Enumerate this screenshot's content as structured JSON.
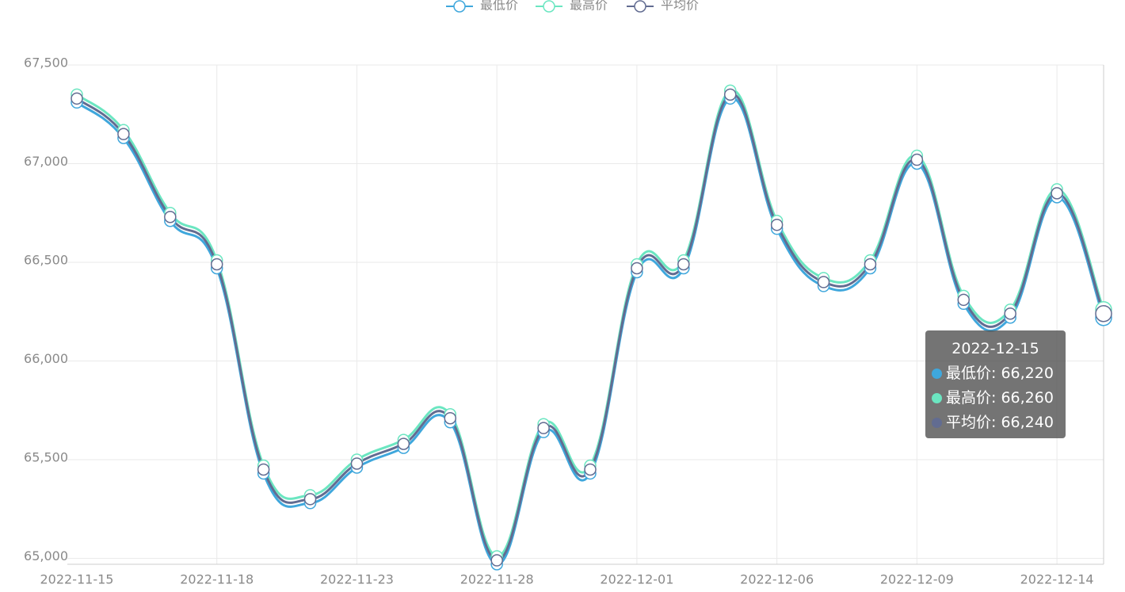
{
  "chart_data": {
    "type": "line",
    "categories": [
      "2022-11-15",
      null,
      null,
      "2022-11-18",
      null,
      null,
      "2022-11-23",
      null,
      null,
      "2022-11-28",
      null,
      null,
      "2022-12-01",
      null,
      null,
      "2022-12-06",
      null,
      null,
      "2022-12-09",
      null,
      null,
      "2022-12-14",
      "2022-12-15"
    ],
    "series": [
      {
        "name": "最低价",
        "color": "#3fa7dc",
        "values": [
          67310,
          67130,
          66710,
          66470,
          65430,
          65280,
          65460,
          65560,
          65690,
          64970,
          65640,
          65430,
          66450,
          66470,
          67330,
          66670,
          66380,
          66470,
          67000,
          66290,
          66220,
          66830,
          66220
        ],
        "value_labels": [
          null,
          null,
          null,
          null,
          null,
          null,
          null,
          null,
          null,
          null,
          null,
          null,
          null,
          null,
          null,
          null,
          null,
          null,
          null,
          null,
          null,
          null,
          "66,220"
        ]
      },
      {
        "name": "最高价",
        "color": "#6be6c1",
        "values": [
          67350,
          67170,
          66750,
          66510,
          65470,
          65320,
          65500,
          65600,
          65730,
          65010,
          65680,
          65470,
          66490,
          66510,
          67370,
          66710,
          66420,
          66510,
          67040,
          66330,
          66260,
          66870,
          66260
        ],
        "value_labels": [
          null,
          null,
          null,
          null,
          null,
          null,
          null,
          null,
          null,
          null,
          null,
          null,
          null,
          null,
          null,
          null,
          null,
          null,
          null,
          null,
          null,
          null,
          "66,260"
        ]
      },
      {
        "name": "平均价",
        "color": "#626c91",
        "values": [
          67330,
          67150,
          66730,
          66490,
          65450,
          65300,
          65480,
          65580,
          65710,
          64990,
          65660,
          65450,
          66470,
          66490,
          67350,
          66690,
          66400,
          66490,
          67020,
          66310,
          66240,
          66850,
          66240
        ],
        "value_labels": [
          null,
          null,
          null,
          null,
          null,
          null,
          null,
          null,
          null,
          null,
          null,
          null,
          null,
          null,
          null,
          null,
          null,
          null,
          null,
          null,
          null,
          null,
          "66,240"
        ]
      }
    ],
    "ylim": [
      64970,
      67500
    ],
    "yticks": [
      {
        "value": 65000,
        "label": "65,000"
      },
      {
        "value": 65500,
        "label": "65,500"
      },
      {
        "value": 66000,
        "label": "66,000"
      },
      {
        "value": 66500,
        "label": "66,500"
      },
      {
        "value": 67000,
        "label": "67,000"
      },
      {
        "value": 67500,
        "label": "67,500"
      }
    ],
    "grid": true,
    "legend": "top",
    "tooltip_index": 22
  }
}
